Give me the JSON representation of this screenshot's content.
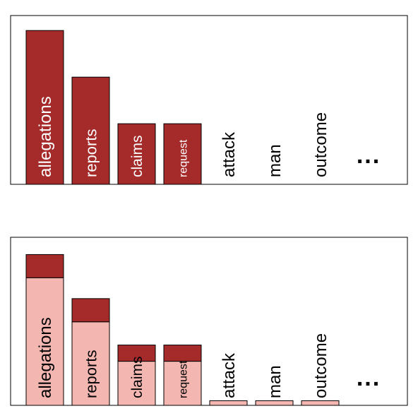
{
  "charts": [
    {
      "type": "bar",
      "categories": [
        "allegations",
        "reports",
        "claims",
        "request",
        "attack",
        "man",
        "outcome"
      ],
      "series": [
        {
          "values": [
            6.6,
            4.6,
            2.6,
            2.6,
            0,
            0,
            0
          ],
          "color": "#a52a2a"
        }
      ],
      "ylim": [
        0,
        7
      ],
      "ellipsis": "...",
      "grid": false,
      "legend": "none",
      "text_color_inside": "#ffffff",
      "text_color_outside": "#000000"
    },
    {
      "type": "bar",
      "stacked": true,
      "categories": [
        "allegations",
        "reports",
        "claims",
        "request",
        "attack",
        "man",
        "outcome"
      ],
      "series": [
        {
          "values": [
            5.5,
            3.6,
            1.9,
            1.9,
            0.2,
            0.2,
            0.2
          ],
          "color": "#f4b6b0"
        },
        {
          "values": [
            1.0,
            1.0,
            0.7,
            0.7,
            0,
            0,
            0
          ],
          "color": "#a52a2a"
        }
      ],
      "ylim": [
        0,
        7
      ],
      "ellipsis": "...",
      "grid": false,
      "legend": "none",
      "text_color_inside": "#000000",
      "text_color_outside": "#000000"
    }
  ]
}
